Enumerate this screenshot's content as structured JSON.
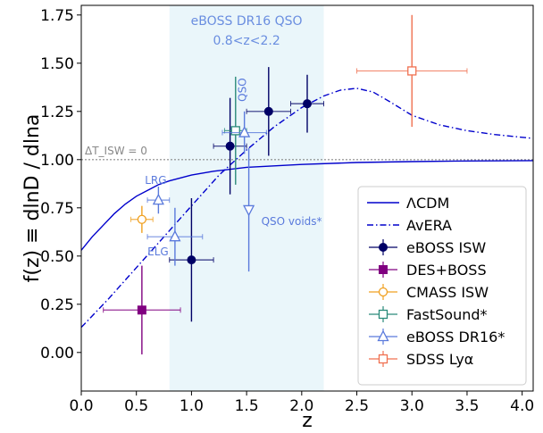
{
  "chart_data": {
    "type": "scatter",
    "xlabel": "z",
    "ylabel": "f(z) ≡ dlnD / dlna",
    "xlim": [
      0.0,
      4.1
    ],
    "ylim": [
      -0.2,
      1.8
    ],
    "xticks": [
      "0.0",
      "0.5",
      "1.0",
      "1.5",
      "2.0",
      "2.5",
      "3.0",
      "3.5",
      "4.0"
    ],
    "xtick_values": [
      0,
      0.5,
      1,
      1.5,
      2,
      2.5,
      3,
      3.5,
      4
    ],
    "yticks": [
      "0.00",
      "0.25",
      "0.50",
      "0.75",
      "1.00",
      "1.25",
      "1.50",
      "1.75"
    ],
    "ytick_values": [
      0,
      0.25,
      0.5,
      0.75,
      1.0,
      1.25,
      1.5,
      1.75
    ],
    "shaded_region": {
      "x": [
        0.8,
        2.2
      ],
      "label_lines": [
        "eBOSS DR16 QSO",
        "0.8<z<2.2"
      ],
      "color": "#eaf6fa",
      "label_color": "#6a8ee0"
    },
    "reference_line": {
      "y": 1.0,
      "label": "ΔT_ISW = 0",
      "color": "#888888"
    },
    "curves": [
      {
        "name": "ΛCDM",
        "style": "solid",
        "color": "#0000cc",
        "x": [
          0.0,
          0.1,
          0.2,
          0.3,
          0.4,
          0.5,
          0.6,
          0.7,
          0.8,
          1.0,
          1.2,
          1.5,
          2.0,
          2.5,
          3.0,
          3.5,
          4.1
        ],
        "y": [
          0.53,
          0.6,
          0.66,
          0.72,
          0.77,
          0.81,
          0.84,
          0.87,
          0.89,
          0.92,
          0.94,
          0.96,
          0.975,
          0.985,
          0.99,
          0.993,
          0.995
        ]
      },
      {
        "name": "AvERA",
        "style": "dashdot",
        "color": "#0000cc",
        "x": [
          0.0,
          0.25,
          0.5,
          0.75,
          1.0,
          1.25,
          1.5,
          1.75,
          2.0,
          2.2,
          2.35,
          2.5,
          2.65,
          2.8,
          3.0,
          3.25,
          3.5,
          3.75,
          4.1
        ],
        "y": [
          0.13,
          0.28,
          0.44,
          0.6,
          0.76,
          0.92,
          1.05,
          1.17,
          1.27,
          1.33,
          1.36,
          1.37,
          1.35,
          1.3,
          1.23,
          1.18,
          1.15,
          1.13,
          1.11
        ]
      }
    ],
    "series": [
      {
        "name": "eBOSS ISW",
        "marker": "circle-filled",
        "color": "#000066",
        "points": [
          {
            "x": 1.0,
            "y": 0.48,
            "xerr": [
              0.2,
              0.2
            ],
            "yerr": [
              0.32,
              0.32
            ]
          },
          {
            "x": 1.35,
            "y": 1.07,
            "xerr": [
              0.15,
              0.15
            ],
            "yerr": [
              0.25,
              0.25
            ]
          },
          {
            "x": 1.7,
            "y": 1.25,
            "xerr": [
              0.2,
              0.2
            ],
            "yerr": [
              0.23,
              0.23
            ]
          },
          {
            "x": 2.05,
            "y": 1.29,
            "xerr": [
              0.15,
              0.15
            ],
            "yerr": [
              0.15,
              0.15
            ]
          }
        ]
      },
      {
        "name": "DES+BOSS",
        "marker": "square-filled",
        "color": "#800080",
        "points": [
          {
            "x": 0.55,
            "y": 0.22,
            "xerr": [
              0.35,
              0.35
            ],
            "yerr": [
              0.23,
              0.23
            ]
          }
        ]
      },
      {
        "name": "CMASS ISW",
        "marker": "circle-open",
        "color": "#f0a020",
        "points": [
          {
            "x": 0.55,
            "y": 0.69,
            "xerr": [
              0.1,
              0.1
            ],
            "yerr": [
              0.07,
              0.07
            ]
          }
        ]
      },
      {
        "name": "FastSound*",
        "marker": "square-open",
        "color": "#2a8a7a",
        "points": [
          {
            "x": 1.4,
            "y": 1.15,
            "xerr": [
              0.1,
              0.1
            ],
            "yerr": [
              0.28,
              0.28
            ]
          }
        ]
      },
      {
        "name": "eBOSS DR16*",
        "marker": "triangle-open",
        "color": "#5a7adc",
        "points": [
          {
            "x": 0.7,
            "y": 0.79,
            "xerr": [
              0.1,
              0.1
            ],
            "yerr": [
              0.07,
              0.07
            ],
            "label": "LRG"
          },
          {
            "x": 0.85,
            "y": 0.6,
            "xerr": [
              0.25,
              0.25
            ],
            "yerr": [
              0.15,
              0.15
            ],
            "label": "ELG"
          },
          {
            "x": 1.48,
            "y": 1.14,
            "xerr": [
              0.2,
              0.2
            ],
            "yerr": [
              0.11,
              0.11
            ],
            "label": "QSO"
          },
          {
            "x": 1.52,
            "y": 0.74,
            "marker": "triangle-down-open",
            "xerr": [
              0.0,
              0.0
            ],
            "yerr": [
              0.32,
              0.32
            ],
            "label": "QSO voids*"
          }
        ]
      },
      {
        "name": "SDSS Lyα",
        "marker": "square-open",
        "color": "#f07050",
        "points": [
          {
            "x": 3.0,
            "y": 1.46,
            "xerr": [
              0.5,
              0.5
            ],
            "yerr": [
              0.29,
              0.29
            ]
          }
        ]
      }
    ],
    "legend": {
      "placement": "lower-right"
    }
  }
}
